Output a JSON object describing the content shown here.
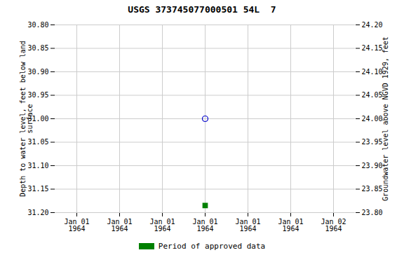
{
  "chart_data": {
    "type": "scatter",
    "title": "USGS 373745077000501 54L  7",
    "categories": [
      "Jan 01\n1964",
      "Jan 01\n1964",
      "Jan 01\n1964",
      "Jan 01\n1964",
      "Jan 01\n1964",
      "Jan 01\n1964",
      "Jan 02\n1964"
    ],
    "ylabel": "Depth to water level, feet below land\nsurface",
    "y2label": "Groundwater level above NGVD 1929, feet",
    "ylim": [
      31.2,
      30.8
    ],
    "yticks": [
      {
        "value": 30.8,
        "label": "30.80"
      },
      {
        "value": 30.85,
        "label": "30.85"
      },
      {
        "value": 30.9,
        "label": "30.90"
      },
      {
        "value": 30.95,
        "label": "30.95"
      },
      {
        "value": 31.0,
        "label": "31.00"
      },
      {
        "value": 31.05,
        "label": "31.05"
      },
      {
        "value": 31.1,
        "label": "31.10"
      },
      {
        "value": 31.15,
        "label": "31.15"
      },
      {
        "value": 31.2,
        "label": "31.20"
      }
    ],
    "y2lim": [
      23.8,
      24.2
    ],
    "y2ticks": [
      {
        "value": 24.2,
        "label": "24.20"
      },
      {
        "value": 24.15,
        "label": "24.15"
      },
      {
        "value": 24.1,
        "label": "24.10"
      },
      {
        "value": 24.05,
        "label": "24.05"
      },
      {
        "value": 24.0,
        "label": "24.00"
      },
      {
        "value": 23.95,
        "label": "23.95"
      },
      {
        "value": 23.9,
        "label": "23.90"
      },
      {
        "value": 23.85,
        "label": "23.85"
      },
      {
        "value": 23.8,
        "label": "23.80"
      }
    ],
    "grid": true,
    "legend": "bottom",
    "series": [
      {
        "color": "#0000cc",
        "marker": "circle",
        "values": [
          null,
          null,
          null,
          31.0,
          null,
          null,
          null
        ]
      },
      {
        "name": "Period of approved data",
        "color": "#008000",
        "marker": "square",
        "values": [
          null,
          null,
          null,
          31.185,
          null,
          null,
          null
        ]
      }
    ]
  }
}
